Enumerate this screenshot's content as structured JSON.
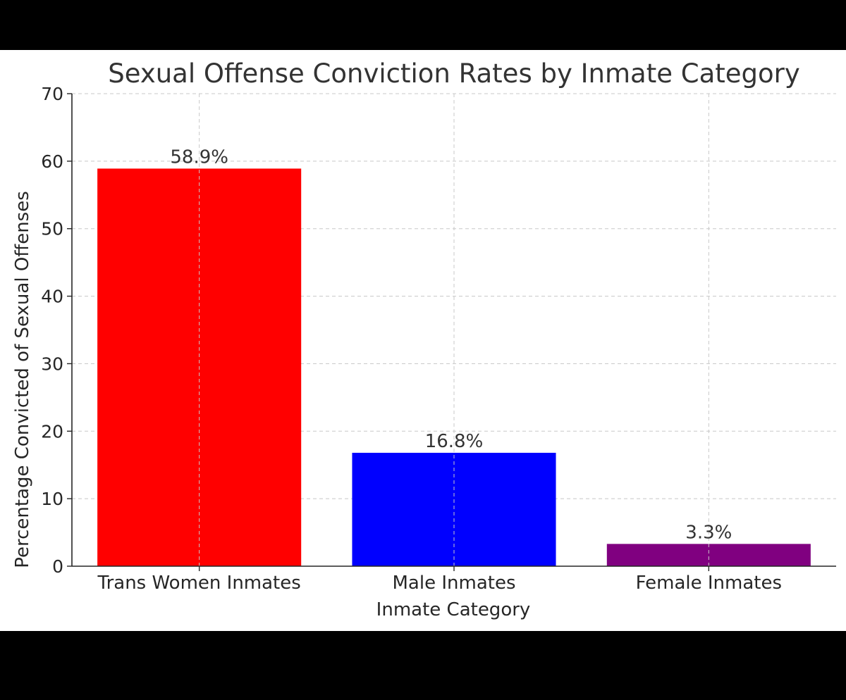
{
  "chart_data": {
    "type": "bar",
    "title": "Sexual Offense Conviction Rates by Inmate Category",
    "xlabel": "Inmate Category",
    "ylabel": "Percentage Convicted of Sexual Offenses",
    "categories": [
      "Trans Women Inmates",
      "Male Inmates",
      "Female Inmates"
    ],
    "values": [
      58.9,
      16.8,
      3.3
    ],
    "value_labels": [
      "58.9%",
      "16.8%",
      "3.3%"
    ],
    "colors": [
      "#ff0000",
      "#0000ff",
      "#800080"
    ],
    "ylim": [
      0,
      70
    ],
    "yticks": [
      0,
      10,
      20,
      30,
      40,
      50,
      60,
      70
    ],
    "grid": true
  }
}
